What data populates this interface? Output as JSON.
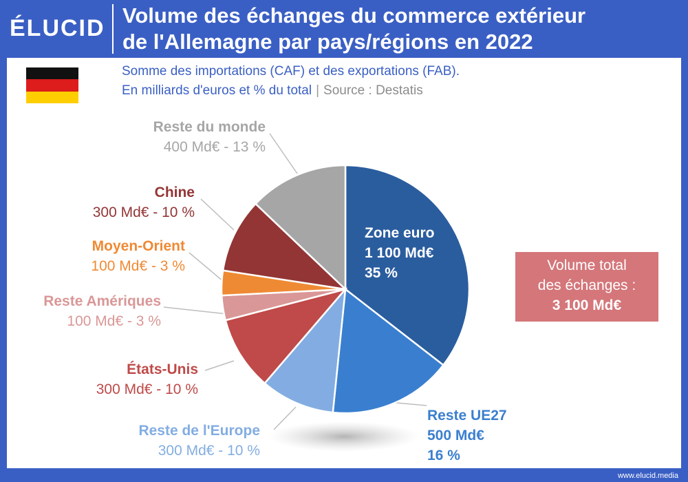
{
  "brand": "ÉLUCID",
  "title_line1": "Volume des échanges du commerce extérieur",
  "title_line2": "de l'Allemagne par pays/régions en 2022",
  "subtitle_line1": "Somme des importations (CAF) et des exportations (FAB).",
  "subtitle_line2": "En milliards d'euros et % du total",
  "subtitle_sep": "|",
  "source": "Source : Destatis",
  "total_label_line1": "Volume total",
  "total_label_line2": "des échanges :",
  "total_value": "3 100 Md€",
  "footer": "www.elucid.media",
  "colors": {
    "header": "#3a5fc4",
    "flag": [
      "#111111",
      "#dd1c1c",
      "#ffce00"
    ]
  },
  "chart_data": {
    "type": "pie",
    "total": 3100,
    "unit": "Md€",
    "slices": [
      {
        "name": "Zone euro",
        "value": 1100,
        "pct": 35,
        "value_text": "1 100 Md€",
        "pct_text": "35 %",
        "color": "#2a5d9e"
      },
      {
        "name": "Reste UE27",
        "value": 500,
        "pct": 16,
        "value_text": "500 Md€",
        "pct_text": "16 %",
        "color": "#3a7fcf"
      },
      {
        "name": "Reste de l'Europe",
        "value": 300,
        "pct": 10,
        "value_text": "300 Md€ - 10 %",
        "color": "#83ade2"
      },
      {
        "name": "États-Unis",
        "value": 300,
        "pct": 10,
        "value_text": "300 Md€ - 10 %",
        "color": "#bf4a49"
      },
      {
        "name": "Reste Amériques",
        "value": 100,
        "pct": 3,
        "value_text": "100 Md€ - 3 %",
        "color": "#da9797"
      },
      {
        "name": "Moyen-Orient",
        "value": 100,
        "pct": 3,
        "value_text": "100 Md€ - 3 %",
        "color": "#ef8a34"
      },
      {
        "name": "Chine",
        "value": 300,
        "pct": 10,
        "value_text": "300 Md€ - 10 %",
        "color": "#933535"
      },
      {
        "name": "Reste du monde",
        "value": 400,
        "pct": 13,
        "value_text": "400 Md€ - 13 %",
        "color": "#a6a6a6"
      }
    ]
  }
}
